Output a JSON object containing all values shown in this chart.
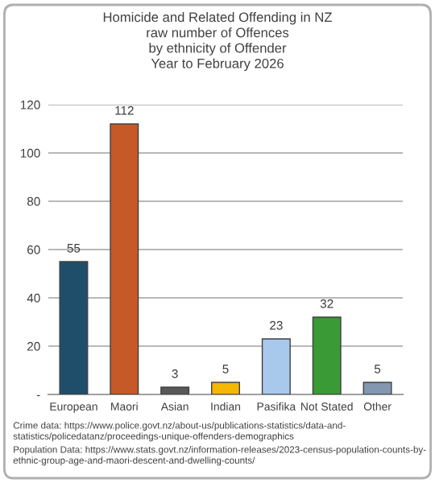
{
  "chart_data": {
    "type": "bar",
    "title": "Homicide and Related Offending in NZ\nraw number of Offences\nby ethnicity of Offender\nYear to February 2026",
    "categories": [
      "European",
      "Maori",
      "Asian",
      "Indian",
      "Pasifika",
      "Not Stated",
      "Other"
    ],
    "values": [
      55,
      112,
      3,
      5,
      23,
      32,
      5
    ],
    "colors": [
      "#1f4e6b",
      "#c55a28",
      "#595959",
      "#f5b800",
      "#a9c9ec",
      "#3a9a35",
      "#8497b0"
    ],
    "ylim": [
      0,
      120
    ],
    "yticks": [
      {
        "value": 0,
        "label": "-"
      },
      20,
      40,
      60,
      80,
      100,
      120
    ],
    "grid": "y",
    "data_labels": true,
    "annotations": [
      "Crime data: https://www.police.govt.nz/about-us/publications-statistics/data-and-\nstatistics/policedatanz/proceedings-unique-offenders-demographics",
      "Population Data: https://www.stats.govt.nz/information-releases/2023-census-population-counts-by-\nethnic-group-age-and-maori-descent-and-dwelling-counts/"
    ]
  }
}
